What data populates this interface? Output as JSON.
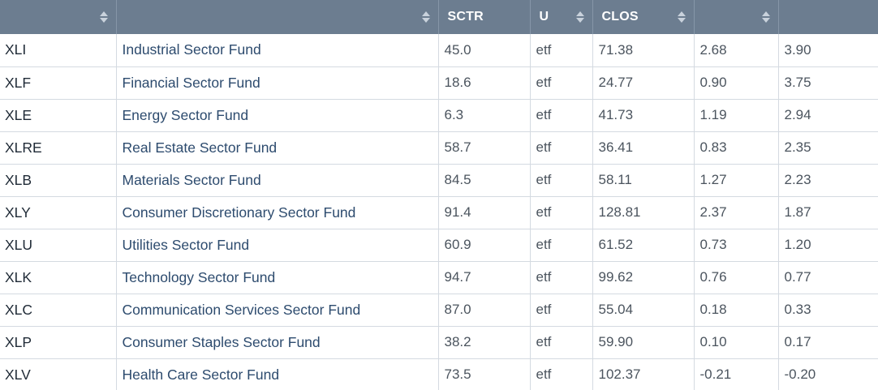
{
  "table": {
    "columns": [
      {
        "label": "",
        "sortable": true
      },
      {
        "label": "",
        "sortable": true
      },
      {
        "label": "SCTR",
        "sortable": false
      },
      {
        "label": "U",
        "sortable": true
      },
      {
        "label": "CLOS",
        "sortable": true
      },
      {
        "label": "",
        "sortable": true
      },
      {
        "label": "",
        "sortable": false
      }
    ],
    "rows": [
      {
        "symbol": "XLI",
        "name": "Industrial Sector Fund",
        "sctr": "45.0",
        "type": "etf",
        "close": "71.38",
        "col6": "2.68",
        "col7": "3.90"
      },
      {
        "symbol": "XLF",
        "name": "Financial Sector Fund",
        "sctr": "18.6",
        "type": "etf",
        "close": "24.77",
        "col6": "0.90",
        "col7": "3.75"
      },
      {
        "symbol": "XLE",
        "name": "Energy Sector Fund",
        "sctr": "6.3",
        "type": "etf",
        "close": "41.73",
        "col6": "1.19",
        "col7": "2.94"
      },
      {
        "symbol": "XLRE",
        "name": "Real Estate Sector Fund",
        "sctr": "58.7",
        "type": "etf",
        "close": "36.41",
        "col6": "0.83",
        "col7": "2.35"
      },
      {
        "symbol": "XLB",
        "name": "Materials Sector Fund",
        "sctr": "84.5",
        "type": "etf",
        "close": "58.11",
        "col6": "1.27",
        "col7": "2.23"
      },
      {
        "symbol": "XLY",
        "name": "Consumer Discretionary Sector Fund",
        "sctr": "91.4",
        "type": "etf",
        "close": "128.81",
        "col6": "2.37",
        "col7": "1.87"
      },
      {
        "symbol": "XLU",
        "name": "Utilities Sector Fund",
        "sctr": "60.9",
        "type": "etf",
        "close": "61.52",
        "col6": "0.73",
        "col7": "1.20"
      },
      {
        "symbol": "XLK",
        "name": "Technology Sector Fund",
        "sctr": "94.7",
        "type": "etf",
        "close": "99.62",
        "col6": "0.76",
        "col7": "0.77"
      },
      {
        "symbol": "XLC",
        "name": "Communication Services Sector Fund",
        "sctr": "87.0",
        "type": "etf",
        "close": "55.04",
        "col6": "0.18",
        "col7": "0.33"
      },
      {
        "symbol": "XLP",
        "name": "Consumer Staples Sector Fund",
        "sctr": "38.2",
        "type": "etf",
        "close": "59.90",
        "col6": "0.10",
        "col7": "0.17"
      },
      {
        "symbol": "XLV",
        "name": "Health Care Sector Fund",
        "sctr": "73.5",
        "type": "etf",
        "close": "102.37",
        "col6": "-0.21",
        "col7": "-0.20"
      }
    ]
  },
  "colors": {
    "header_bg": "#6c7d90",
    "header_text": "#ffffff",
    "name_link": "#2d4b6e",
    "row_border": "#d4dae1"
  }
}
